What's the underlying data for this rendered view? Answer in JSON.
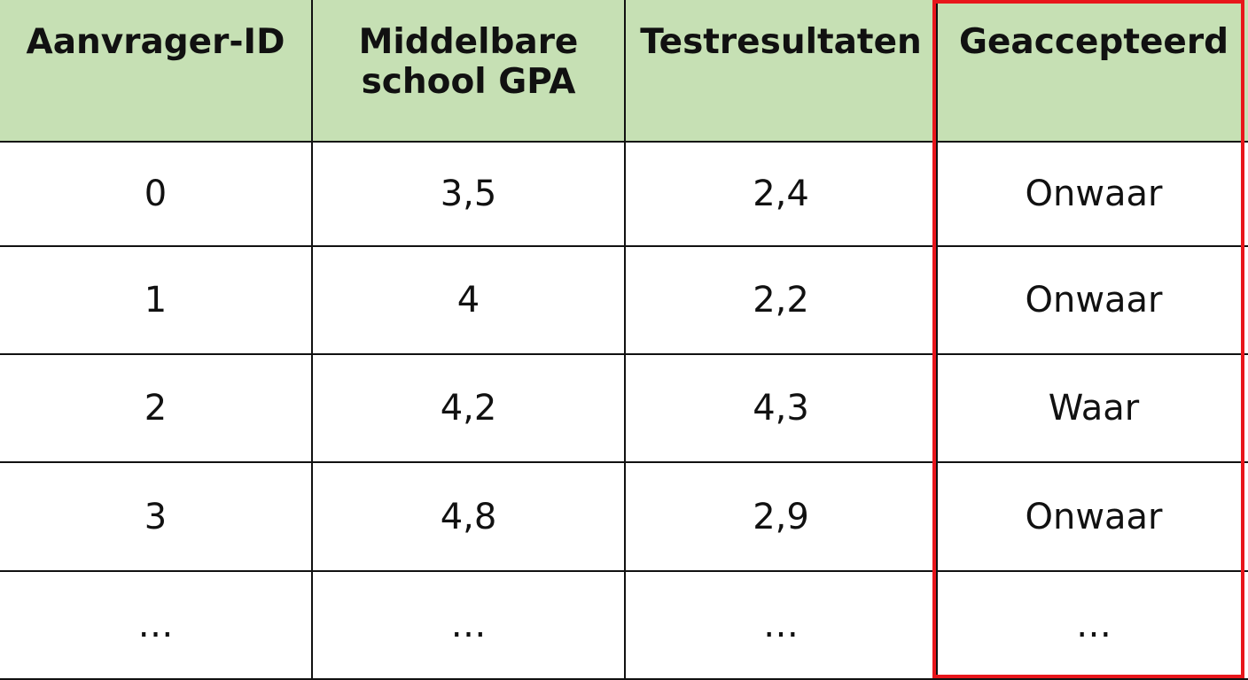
{
  "table": {
    "header": [
      "Aanvrager-ID",
      "Middelbare school GPA",
      "Testresultaten",
      "Geaccepteerd"
    ],
    "rows": [
      [
        "0",
        "3,5",
        "2,4",
        "Onwaar"
      ],
      [
        "1",
        "4",
        "2,2",
        "Onwaar"
      ],
      [
        "2",
        "4,2",
        "4,3",
        "Waar"
      ],
      [
        "3",
        "4,8",
        "2,9",
        "Onwaar"
      ],
      [
        "…",
        "…",
        "…",
        "…"
      ]
    ]
  }
}
